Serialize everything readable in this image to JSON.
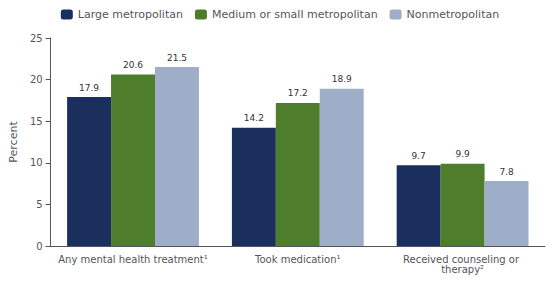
{
  "chart_data": {
    "type": "bar",
    "ylabel": "Percent",
    "categories": [
      "Any mental health treatment¹",
      "Took medication¹",
      "Received counseling or therapy²"
    ],
    "series": [
      {
        "name": "Large metropolitan",
        "color": "#1b2f5e",
        "values": [
          17.9,
          14.2,
          9.7
        ]
      },
      {
        "name": "Medium or small metropolitan",
        "color": "#4e7d2c",
        "values": [
          20.6,
          17.2,
          9.9
        ]
      },
      {
        "name": "Nonmetropolitan",
        "color": "#9faec8",
        "values": [
          21.5,
          18.9,
          7.8
        ]
      }
    ],
    "ylim": [
      0,
      25
    ],
    "yticks": [
      0,
      5,
      10,
      15,
      20,
      25
    ],
    "grid": false,
    "legend": "top",
    "data_labels": true
  }
}
